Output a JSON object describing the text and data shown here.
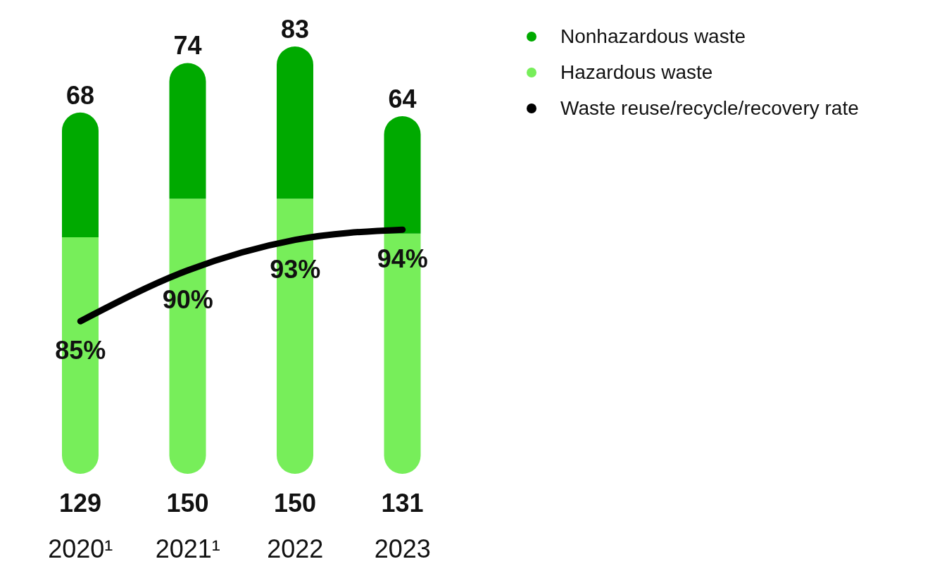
{
  "chart_data": {
    "type": "bar",
    "stacked": true,
    "categories": [
      "2020¹",
      "2021¹",
      "2022",
      "2023"
    ],
    "series": [
      {
        "name": "Hazardous waste",
        "color": "#77ee5a",
        "values": [
          129,
          150,
          150,
          131
        ]
      },
      {
        "name": "Nonhazardous waste",
        "color": "#00aa00",
        "values": [
          68,
          74,
          83,
          64
        ]
      },
      {
        "name": "Waste reuse/recycle/recovery rate",
        "type": "line",
        "axis": "y2",
        "color": "#000000",
        "values": [
          85,
          90,
          93,
          94
        ],
        "value_labels": [
          "85%",
          "90%",
          "93%",
          "94%"
        ]
      }
    ],
    "data_labels": true,
    "legend": "top right",
    "grid": false,
    "marker": "none"
  }
}
